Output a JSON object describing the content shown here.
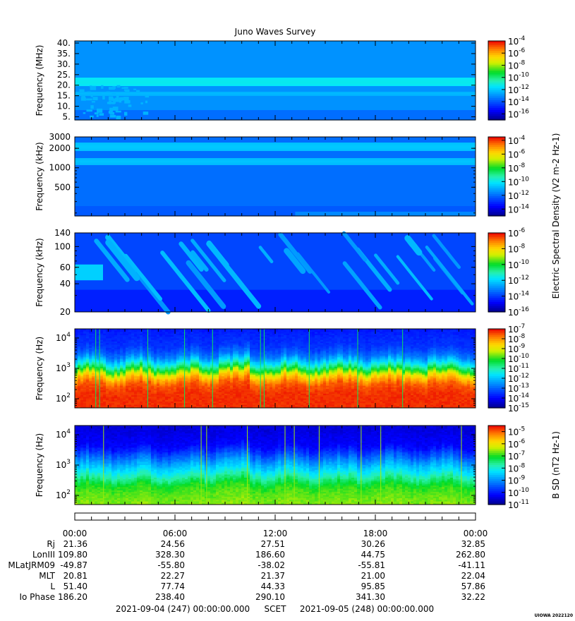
{
  "chart_data": {
    "type": "heatmap",
    "title": "Juno Waves Survey",
    "panels": [
      {
        "ylabel": "Frequency (MHz)",
        "yscale": "linear",
        "ylim": [
          3.5,
          41
        ],
        "yticks": [
          5,
          10,
          15,
          20,
          25,
          30,
          35,
          40
        ],
        "ytick_labels": [
          "5.",
          "10.",
          "15.",
          "20.",
          "25.",
          "30.",
          "35.",
          "40."
        ],
        "colorbar_ticks": [
          "10-4",
          "10-6",
          "10-8",
          "10-10",
          "10-12",
          "10-14",
          "10-16"
        ],
        "colorbar_range_log10": [
          -17,
          -4
        ],
        "bands": [
          {
            "center": 21.5,
            "width_frac": 0.06,
            "level_log10": -11.5
          },
          {
            "center": 16.0,
            "width_frac": 0.03,
            "level_log10": -12.5
          }
        ],
        "background_log10": -13.0,
        "bottom_log10": -13.6
      },
      {
        "ylabel": "Frequency (kHz)",
        "yscale": "log",
        "ylim": [
          180,
          3000
        ],
        "yticks": [
          500,
          1000,
          2000,
          3000
        ],
        "ytick_labels": [
          "500",
          "1000",
          "2000",
          "3000"
        ],
        "colorbar_ticks": [
          "10-4",
          "10-6",
          "10-8",
          "10-10",
          "10-12",
          "10-14"
        ],
        "colorbar_range_log10": [
          -15,
          -3.5
        ],
        "bands": [
          {
            "center": 2100,
            "width_frac": 0.06,
            "level_log10": -10.8
          },
          {
            "center": 1250,
            "width_frac": 0.05,
            "level_log10": -10.9
          }
        ],
        "background_log10": -12.0,
        "bottom_log10": -12.3
      },
      {
        "ylabel": "Frequency (kHz)",
        "yscale": "log",
        "ylim": [
          20,
          140
        ],
        "yticks": [
          20,
          40,
          60,
          100,
          140
        ],
        "ytick_labels": [
          "20",
          "40",
          "60",
          "100",
          "140"
        ],
        "colorbar_ticks": [
          "10-6",
          "10-8",
          "10-10",
          "10-12",
          "10-14",
          "10-16"
        ],
        "colorbar_range_log10": [
          -16,
          -6
        ],
        "background_log10": -13.9,
        "bursts_log10": -12.6
      },
      {
        "ylabel": "Frequency (Hz)",
        "yscale": "log",
        "ylim": [
          50,
          20000
        ],
        "yticks": [
          100,
          1000,
          10000
        ],
        "ytick_labels": [
          "10^2",
          "10^3",
          "10^4"
        ],
        "colorbar_ticks": [
          "10-7",
          "10-8",
          "10-9",
          "10-10",
          "10-11",
          "10-12",
          "10-13",
          "10-14",
          "10-15"
        ],
        "colorbar_range_log10": [
          -15,
          -7
        ],
        "profile_log10": [
          [
            50,
            -7.3
          ],
          [
            150,
            -7.3
          ],
          [
            300,
            -7.6
          ],
          [
            550,
            -8.6
          ],
          [
            900,
            -10.2
          ],
          [
            1500,
            -11.6
          ],
          [
            2500,
            -12.8
          ],
          [
            5000,
            -13.5
          ],
          [
            20000,
            -13.8
          ]
        ]
      },
      {
        "ylabel": "Frequency (Hz)",
        "yscale": "log",
        "ylim": [
          50,
          20000
        ],
        "yticks": [
          100,
          1000,
          10000
        ],
        "ytick_labels": [
          "10^2",
          "10^3",
          "10^4"
        ],
        "colorbar_ticks": [
          "10-5",
          "10-6",
          "10-7",
          "10-8",
          "10-9",
          "10-10",
          "10-11"
        ],
        "colorbar_range_log10": [
          -11,
          -4.5
        ],
        "profile_log10": [
          [
            50,
            -6.6
          ],
          [
            120,
            -6.8
          ],
          [
            200,
            -7.0
          ],
          [
            350,
            -7.6
          ],
          [
            600,
            -8.2
          ],
          [
            1000,
            -8.7
          ],
          [
            2000,
            -9.5
          ],
          [
            4000,
            -10.2
          ],
          [
            20000,
            -10.5
          ]
        ]
      }
    ],
    "colorbar_label_electric": "Electric Spectral Density (V2 m-2 Hz-1)",
    "colorbar_label_magnetic": "B SD (nT2 Hz-1)",
    "x_tick_labels": [
      "00:00",
      "06:00",
      "12:00",
      "18:00",
      "00:00"
    ],
    "ephemeris": [
      {
        "label": "Rj",
        "values": [
          "21.36",
          "24.56",
          "27.51",
          "30.26",
          "32.85"
        ]
      },
      {
        "label": "LonIII",
        "values": [
          "109.80",
          "328.30",
          "186.60",
          "44.75",
          "262.80"
        ]
      },
      {
        "label": "MLatJRM09",
        "values": [
          "-49.87",
          "-55.80",
          "-38.02",
          "-55.81",
          "-41.11"
        ]
      },
      {
        "label": "MLT",
        "values": [
          "20.81",
          "22.27",
          "21.37",
          "21.00",
          "22.04"
        ]
      },
      {
        "label": "L",
        "values": [
          "51.40",
          "77.74",
          "44.33",
          "95.85",
          "57.86"
        ]
      },
      {
        "label": "Io Phase",
        "values": [
          "186.20",
          "238.40",
          "290.10",
          "341.30",
          "32.22"
        ]
      }
    ],
    "time_range": {
      "start": "2021-09-04 (247) 00:00:00.000",
      "scet": "SCET",
      "end": "2021-09-05 (248) 00:00:00.000"
    },
    "stamp": "UIOWA 2022120"
  }
}
